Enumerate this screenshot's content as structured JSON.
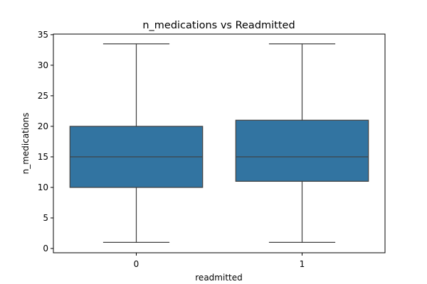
{
  "chart_data": {
    "type": "box",
    "title": "n_medications vs Readmitted",
    "xlabel": "readmitted",
    "ylabel": "n_medications",
    "categories": [
      "0",
      "1"
    ],
    "boxes": [
      {
        "category": "0",
        "whisker_low": 1,
        "q1": 10,
        "median": 15,
        "q3": 20,
        "whisker_high": 33.5
      },
      {
        "category": "1",
        "whisker_low": 1,
        "q1": 11,
        "median": 15,
        "q3": 21,
        "whisker_high": 33.5
      }
    ],
    "ylim": [
      -0.7,
      35.1
    ],
    "yticks": [
      0,
      5,
      10,
      15,
      20,
      25,
      30,
      35
    ],
    "grid": false,
    "box_color": "#3274a1",
    "line_color": "#3f3f3f"
  }
}
